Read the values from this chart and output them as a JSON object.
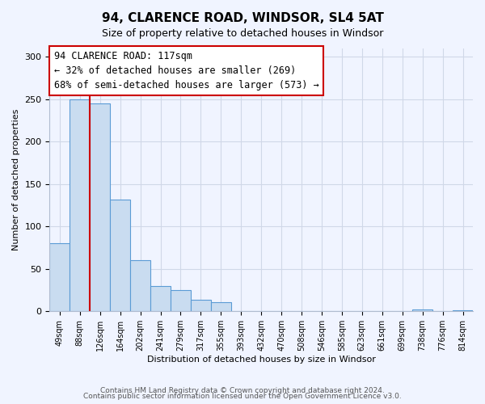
{
  "title": "94, CLARENCE ROAD, WINDSOR, SL4 5AT",
  "subtitle": "Size of property relative to detached houses in Windsor",
  "bar_heights": [
    80,
    250,
    245,
    132,
    60,
    30,
    25,
    14,
    11,
    0,
    0,
    0,
    0,
    0,
    0,
    0,
    0,
    0,
    2,
    0,
    1
  ],
  "x_labels": [
    "49sqm",
    "88sqm",
    "126sqm",
    "164sqm",
    "202sqm",
    "241sqm",
    "279sqm",
    "317sqm",
    "355sqm",
    "393sqm",
    "432sqm",
    "470sqm",
    "508sqm",
    "546sqm",
    "585sqm",
    "623sqm",
    "661sqm",
    "699sqm",
    "738sqm",
    "776sqm",
    "814sqm"
  ],
  "bar_color": "#c9dcf0",
  "bar_edge_color": "#5b9bd5",
  "ylabel": "Number of detached properties",
  "xlabel": "Distribution of detached houses by size in Windsor",
  "ylim": [
    0,
    310
  ],
  "yticks": [
    0,
    50,
    100,
    150,
    200,
    250,
    300
  ],
  "annotation_title": "94 CLARENCE ROAD: 117sqm",
  "annotation_line1": "← 32% of detached houses are smaller (269)",
  "annotation_line2": "68% of semi-detached houses are larger (573) →",
  "marker_line_color": "#cc0000",
  "footer1": "Contains HM Land Registry data © Crown copyright and database right 2024.",
  "footer2": "Contains public sector information licensed under the Open Government Licence v3.0.",
  "background_color": "#f0f4ff",
  "grid_color": "#d0d8e8",
  "spine_color": "#b0bcd0"
}
